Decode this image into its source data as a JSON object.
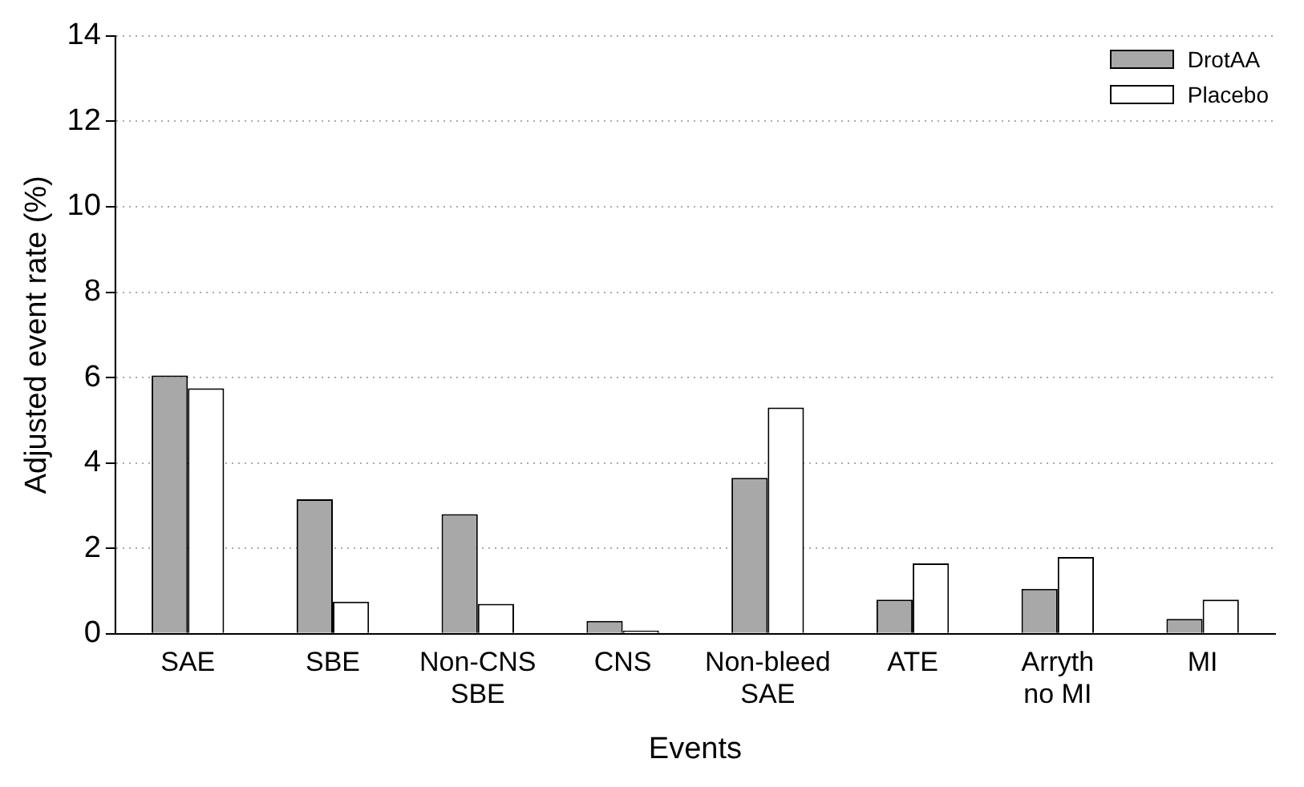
{
  "chart_data": {
    "type": "bar",
    "xlabel": "Events",
    "ylabel": "Adjusted event rate (%)",
    "categories": [
      "SAE",
      "SBE",
      "Non-CNS SBE",
      "CNS",
      "Non-bleed SAE",
      "ATE",
      "Arryth no MI",
      "MI"
    ],
    "series": [
      {
        "name": "DrotAA",
        "color": "#a8a8a8",
        "values": [
          6.05,
          3.15,
          2.8,
          0.3,
          3.65,
          0.8,
          1.05,
          0.35
        ]
      },
      {
        "name": "Placebo",
        "color": "#ffffff",
        "values": [
          5.75,
          0.75,
          0.7,
          0.07,
          5.3,
          1.65,
          1.8,
          0.8
        ]
      }
    ],
    "ylim": [
      0,
      14
    ],
    "yticks": [
      0,
      2,
      4,
      6,
      8,
      10,
      12,
      14
    ],
    "grid": "y",
    "legend": "top right"
  }
}
